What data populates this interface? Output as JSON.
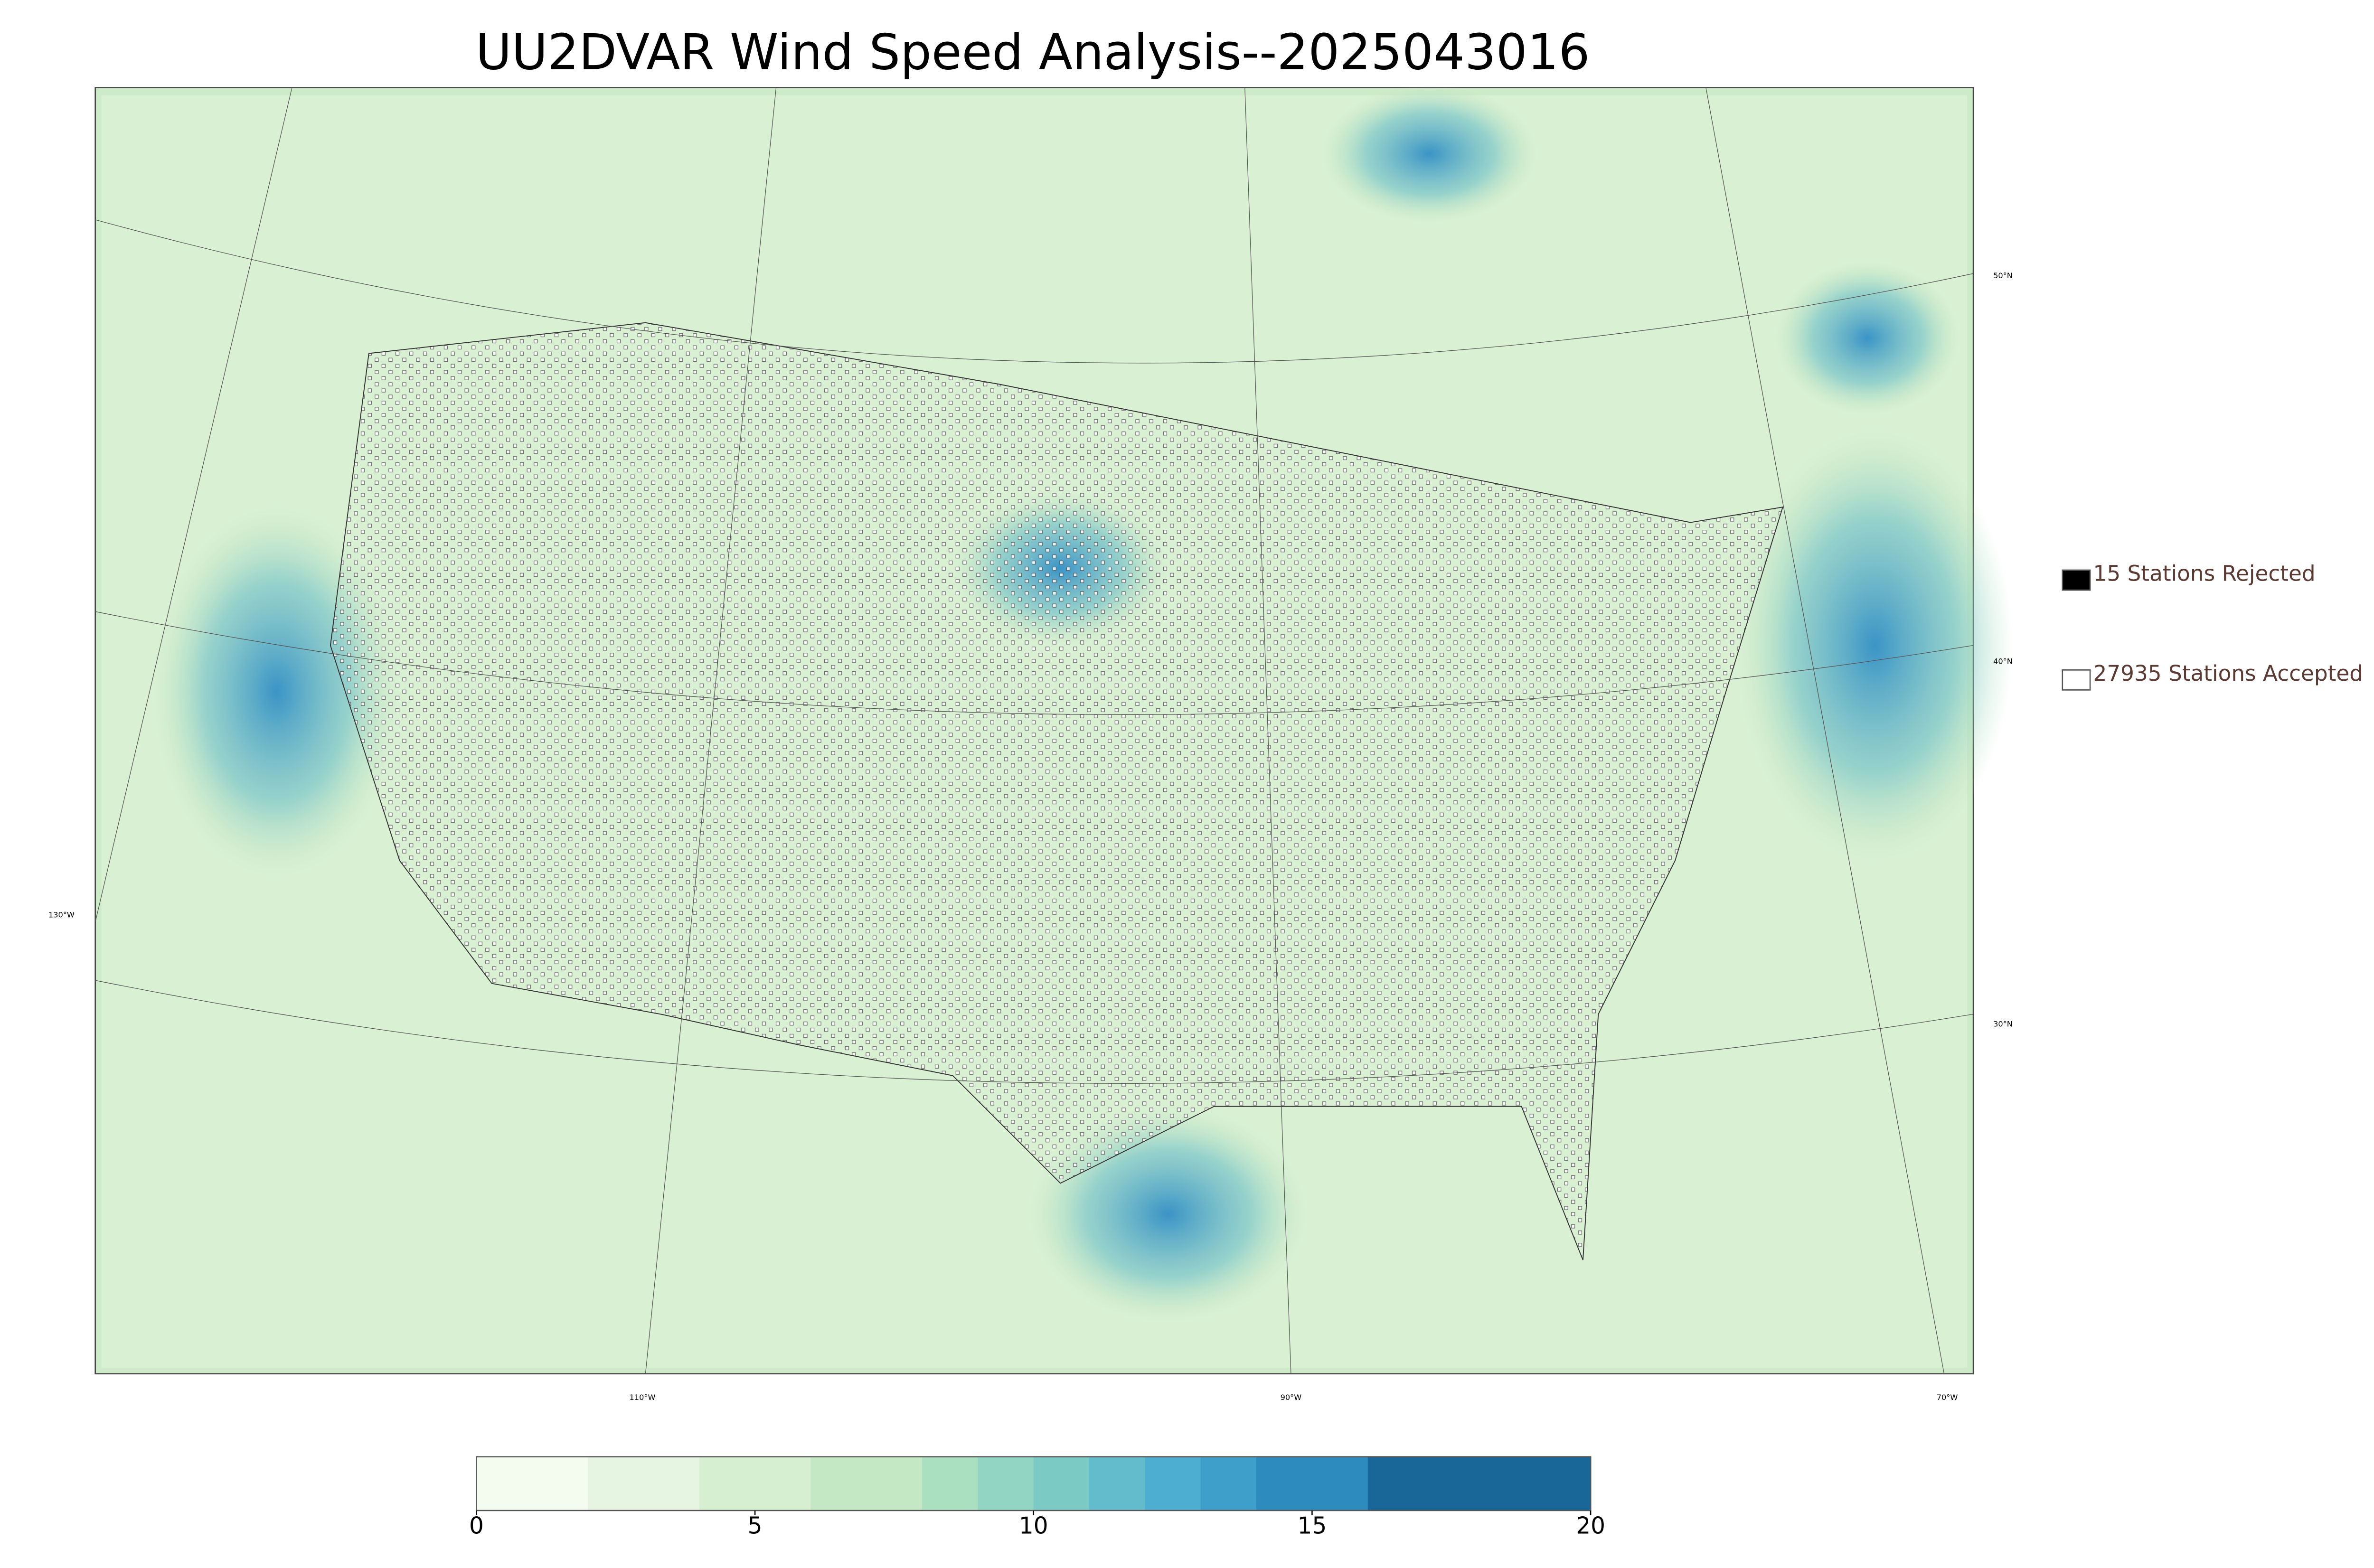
{
  "title": "UU2DVAR Wind Speed Analysis--2025043016",
  "map": {
    "longitude_labels": [
      "130°W",
      "110°W",
      "90°W",
      "70°W"
    ],
    "latitude_labels": [
      "50°N",
      "40°N",
      "30°N"
    ]
  },
  "legend": [
    {
      "label": "15 Stations Rejected",
      "fill": "#000000"
    },
    {
      "label": "27935 Stations Accepted",
      "fill": "#ffffff"
    }
  ],
  "colorbar": {
    "lim": [
      0,
      20
    ],
    "ticks": [
      0,
      5,
      10,
      15,
      20
    ],
    "levels": [
      0,
      2,
      4,
      6,
      8,
      9,
      10,
      11,
      12,
      13,
      14,
      16,
      20
    ],
    "colors": [
      "#f4fbef",
      "#e6f5e1",
      "#d7efd1",
      "#c4e8c3",
      "#aadfc0",
      "#93d5c3",
      "#7bcbc4",
      "#63bccb",
      "#4daed2",
      "#3e9fcb",
      "#2d8bbe",
      "#196699"
    ]
  }
}
